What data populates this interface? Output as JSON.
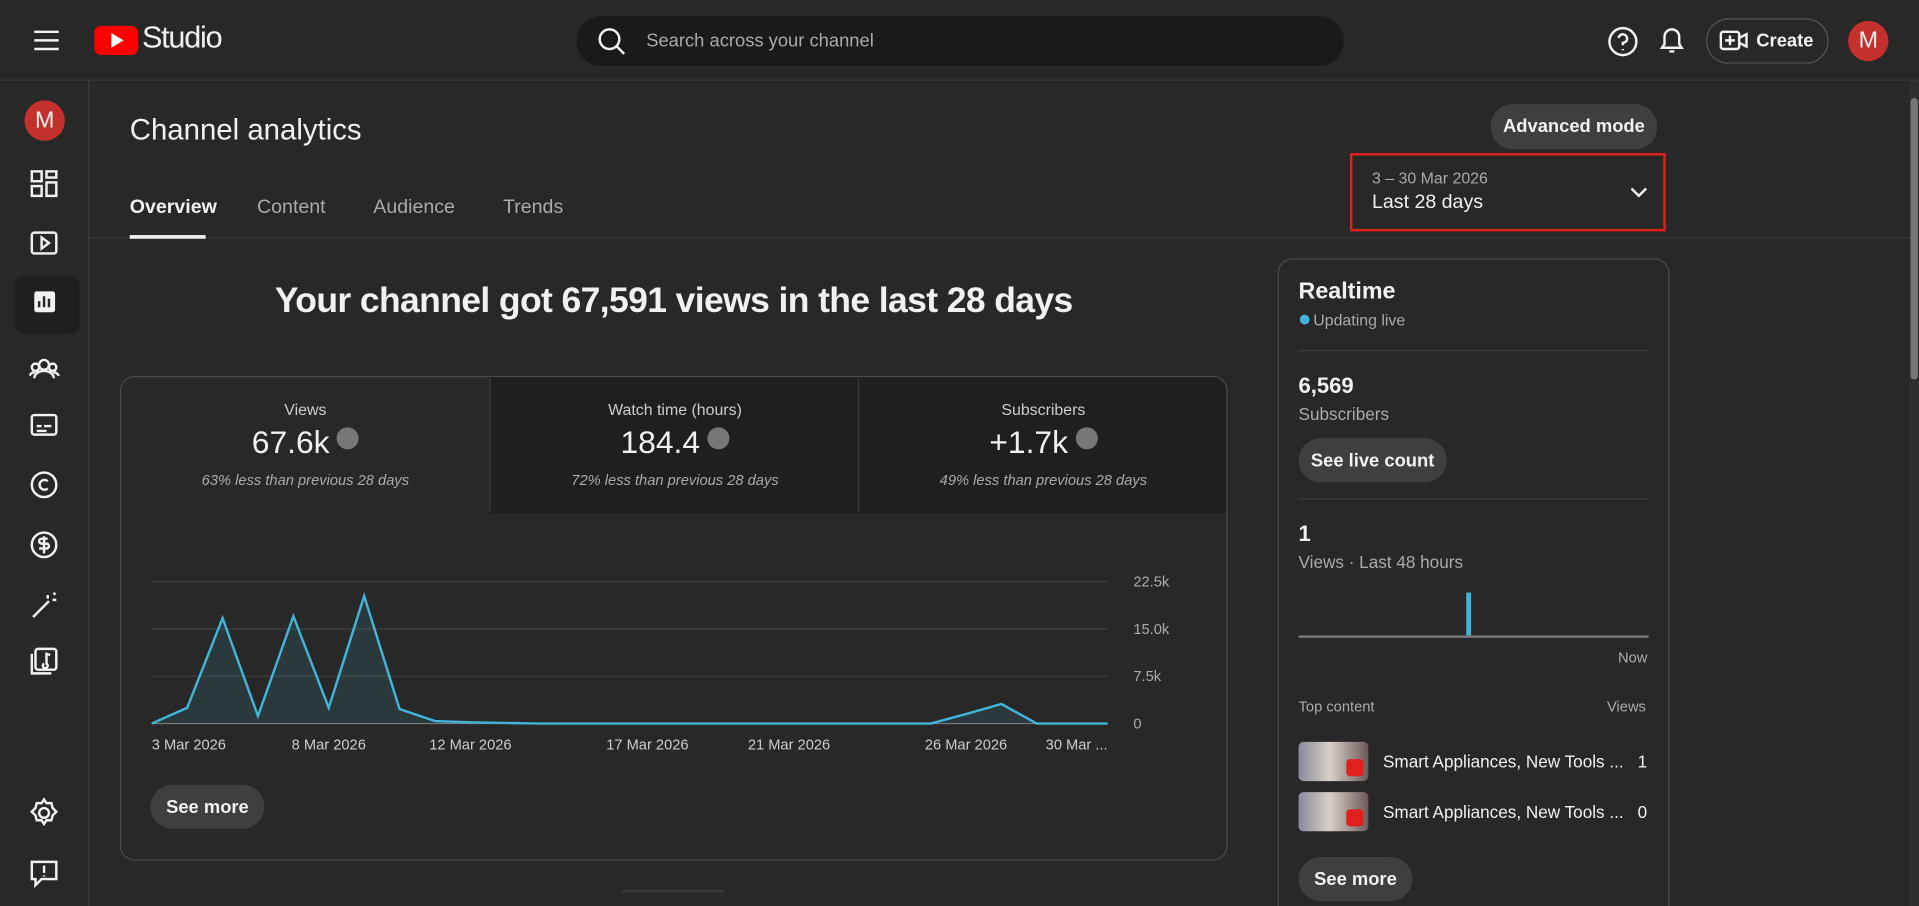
{
  "header": {
    "logo": "Studio",
    "search_placeholder": "Search across your channel",
    "create": "Create",
    "avatar": "M"
  },
  "sidebar": {
    "avatar": "M"
  },
  "page": {
    "title": "Channel analytics",
    "advanced_mode": "Advanced mode",
    "tabs": [
      "Overview",
      "Content",
      "Audience",
      "Trends"
    ],
    "date_range": {
      "dates": "3 – 30 Mar 2026",
      "label": "Last 28 days"
    }
  },
  "headline": "Your channel got 67,591 views in the last 28 days",
  "metrics": [
    {
      "label": "Views",
      "value": "67.6k",
      "change": "63% less than previous 28 days"
    },
    {
      "label": "Watch time (hours)",
      "value": "184.4",
      "change": "72% less than previous 28 days"
    },
    {
      "label": "Subscribers",
      "value": "+1.7k",
      "change": "49% less than previous 28 days"
    }
  ],
  "chart": {
    "type": "line",
    "color": "#41b4d9",
    "categories": [
      "3 Mar 2026",
      null,
      null,
      null,
      null,
      "8 Mar 2026",
      null,
      null,
      null,
      "12 Mar 2026",
      null,
      null,
      null,
      null,
      "17 Mar 2026",
      null,
      null,
      null,
      "21 Mar 2026",
      null,
      null,
      null,
      null,
      "26 Mar 2026",
      null,
      null,
      null,
      "30 Mar ..."
    ],
    "values": [
      0,
      2500,
      16700,
      1200,
      17000,
      2500,
      20200,
      2300,
      400,
      200,
      100,
      0,
      0,
      0,
      0,
      0,
      0,
      0,
      0,
      0,
      0,
      0,
      0,
      1500,
      3100,
      0,
      0,
      0
    ],
    "ylim": [
      0,
      22500
    ],
    "yticks": [
      0,
      {
        "value": 7500,
        "label": "7.5k"
      },
      {
        "value": 15000,
        "label": "15.0k"
      },
      {
        "value": 22500,
        "label": "22.5k"
      }
    ],
    "grid": true
  },
  "see_more": "See more",
  "realtime": {
    "title": "Realtime",
    "status": "Updating live",
    "subscribers": "6,569",
    "subscribers_label": "Subscribers",
    "see_live_count": "See live count",
    "views": 1,
    "views_label": "Views · Last 48 hours",
    "now": "Now",
    "top_content": "Top content",
    "views_header": "Views",
    "items": [
      {
        "title": "Smart Appliances, New Tools ...",
        "views": 1
      },
      {
        "title": "Smart Appliances, New Tools ...",
        "views": 0
      }
    ],
    "see_more": "See more"
  }
}
